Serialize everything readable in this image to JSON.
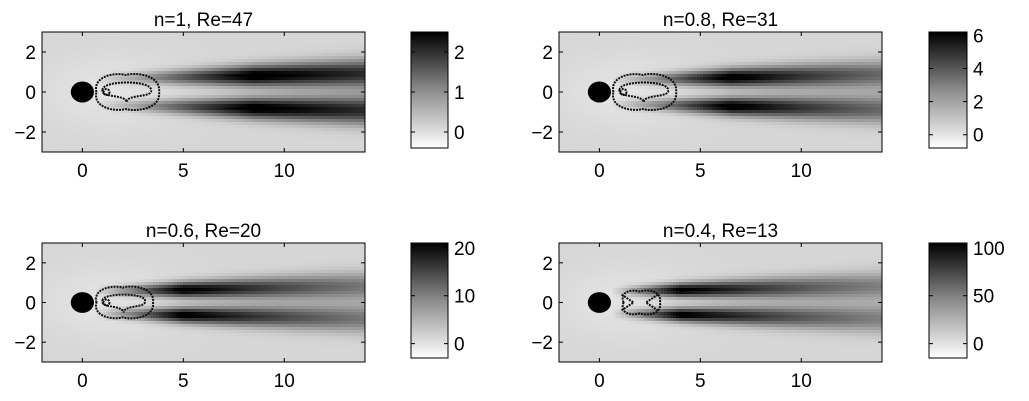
{
  "chart_data": [
    {
      "type": "heatmap",
      "title": "n=1, Re=47",
      "x_ticks": [
        0,
        5,
        10
      ],
      "y_ticks": [
        2,
        0,
        -2
      ],
      "x_tick_labels": [
        "0",
        "5",
        "10"
      ],
      "y_tick_labels": [
        "2",
        "0",
        "−2"
      ],
      "xlim": [
        -2,
        14
      ],
      "ylim": [
        -3,
        3
      ],
      "colorbar": {
        "range": [
          -0.4,
          2.5
        ],
        "ticks": [
          0,
          1,
          2
        ],
        "tick_labels": [
          "0",
          "1",
          "2"
        ]
      },
      "cylinder": {
        "x": 0,
        "y": 0,
        "r": 0.5
      },
      "wake": {
        "peak_y": 0.65,
        "peak_x": 8.5,
        "peak_value": 2.3
      },
      "recirculation_region": {
        "x": [
          0.5,
          3.8
        ],
        "half_width": 1.0
      },
      "colormap": "gray-reversed",
      "grid": false
    },
    {
      "type": "heatmap",
      "title": "n=0.8, Re=31",
      "x_ticks": [
        0,
        5,
        10
      ],
      "y_ticks": [
        2,
        0,
        -2
      ],
      "x_tick_labels": [
        "0",
        "5",
        "10"
      ],
      "y_tick_labels": [
        "2",
        "0",
        "−2"
      ],
      "xlim": [
        -2,
        14
      ],
      "ylim": [
        -3,
        3
      ],
      "colorbar": {
        "range": [
          -0.8,
          6.2
        ],
        "ticks": [
          0,
          2,
          4,
          6
        ],
        "tick_labels": [
          "0",
          "2",
          "4",
          "6"
        ]
      },
      "cylinder": {
        "x": 0,
        "y": 0,
        "r": 0.5
      },
      "wake": {
        "peak_y": 0.6,
        "peak_x": 6.5,
        "peak_value": 5.6
      },
      "recirculation_region": {
        "x": [
          0.5,
          3.8
        ],
        "half_width": 1.0
      },
      "colormap": "gray-reversed",
      "grid": false
    },
    {
      "type": "heatmap",
      "title": "n=0.6, Re=20",
      "x_ticks": [
        0,
        5,
        10
      ],
      "y_ticks": [
        2,
        0,
        -2
      ],
      "x_tick_labels": [
        "0",
        "5",
        "10"
      ],
      "y_tick_labels": [
        "2",
        "0",
        "−2"
      ],
      "xlim": [
        -2,
        14
      ],
      "ylim": [
        -3,
        3
      ],
      "colorbar": {
        "range": [
          -3,
          21
        ],
        "ticks": [
          0,
          10,
          20
        ],
        "tick_labels": [
          "0",
          "10",
          "20"
        ]
      },
      "cylinder": {
        "x": 0,
        "y": 0,
        "r": 0.5
      },
      "wake": {
        "peak_y": 0.55,
        "peak_x": 5.0,
        "peak_value": 19
      },
      "recirculation_region": {
        "x": [
          0.5,
          3.5
        ],
        "half_width": 0.9
      },
      "colormap": "gray-reversed",
      "grid": false
    },
    {
      "type": "heatmap",
      "title": "n=0.4, Re=13",
      "x_ticks": [
        0,
        5,
        10
      ],
      "y_ticks": [
        2,
        0,
        -2
      ],
      "x_tick_labels": [
        "0",
        "5",
        "10"
      ],
      "y_tick_labels": [
        "2",
        "0",
        "−2"
      ],
      "xlim": [
        -2,
        14
      ],
      "ylim": [
        -3,
        3
      ],
      "colorbar": {
        "range": [
          -15,
          105
        ],
        "ticks": [
          0,
          50,
          100
        ],
        "tick_labels": [
          "0",
          "50",
          "100"
        ]
      },
      "cylinder": {
        "x": 0,
        "y": 0,
        "r": 0.5
      },
      "wake": {
        "peak_y": 0.55,
        "peak_x": 4.0,
        "peak_value": 90
      },
      "recirculation_region": {
        "x": [
          1.0,
          3.0
        ],
        "half_width": 0.7
      },
      "colormap": "gray-reversed",
      "grid": false
    }
  ]
}
